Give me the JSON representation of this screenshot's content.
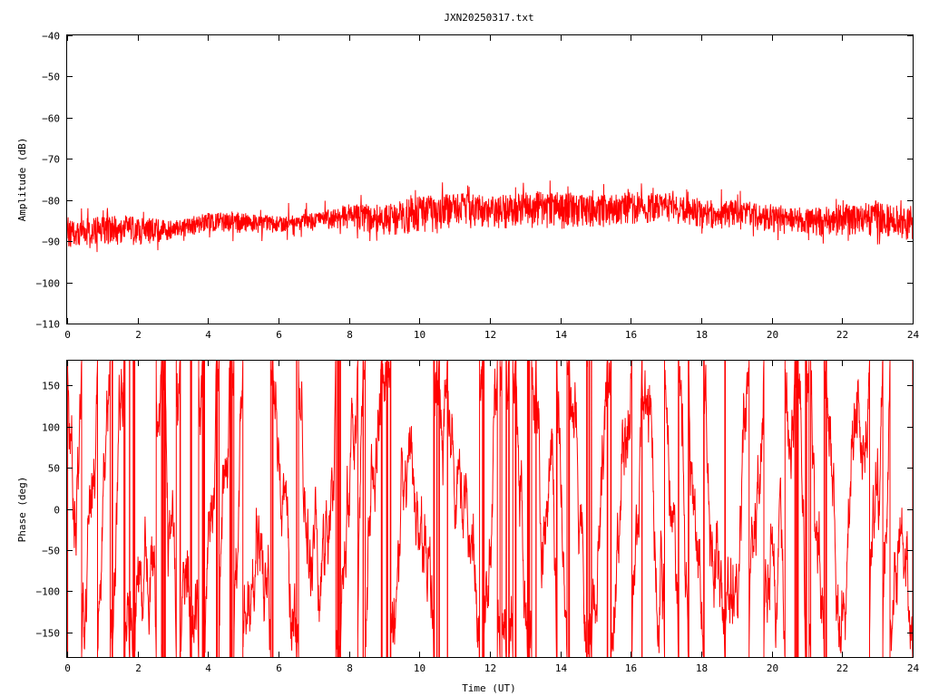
{
  "chart_data": [
    {
      "type": "line",
      "title": "JXN20250317.txt",
      "xlabel": "",
      "ylabel": "Amplitude (dB)",
      "xlim": [
        0,
        24
      ],
      "ylim": [
        -110,
        -40
      ],
      "xticks": [
        0,
        2,
        4,
        6,
        8,
        10,
        12,
        14,
        16,
        18,
        20,
        22,
        24
      ],
      "yticks": [
        -40,
        -50,
        -60,
        -70,
        -80,
        -90,
        -100,
        -110
      ],
      "grid": false,
      "series": [
        {
          "color": "#ff0000",
          "envelope": {
            "x": [
              0,
              1,
              2,
              3,
              4,
              5,
              6,
              7,
              8,
              9,
              10,
              11,
              12,
              13,
              14,
              15,
              16,
              17,
              18,
              19,
              20,
              21,
              22,
              23,
              24
            ],
            "upper": [
              -85,
              -84,
              -84,
              -85,
              -83,
              -83,
              -84,
              -83,
              -81,
              -81,
              -79,
              -78,
              -79,
              -78,
              -78,
              -79,
              -78,
              -78,
              -80,
              -80,
              -81,
              -82,
              -81,
              -80,
              -82
            ],
            "lower": [
              -92,
              -91,
              -91,
              -90,
              -88,
              -88,
              -88,
              -87,
              -87,
              -89,
              -88,
              -87,
              -87,
              -87,
              -87,
              -87,
              -86,
              -86,
              -87,
              -87,
              -88,
              -89,
              -89,
              -89,
              -90
            ]
          }
        }
      ]
    },
    {
      "type": "line",
      "title": "",
      "xlabel": "Time (UT)",
      "ylabel": "Phase (deg)",
      "xlim": [
        0,
        24
      ],
      "ylim": [
        -180,
        180
      ],
      "xticks": [
        0,
        2,
        4,
        6,
        8,
        10,
        12,
        14,
        16,
        18,
        20,
        22,
        24
      ],
      "yticks": [
        150,
        100,
        50,
        0,
        -50,
        -100,
        -150
      ],
      "grid": false,
      "series": [
        {
          "color": "#ff0000",
          "note": "phase wraps between -180 and 180 degrees"
        }
      ]
    }
  ]
}
